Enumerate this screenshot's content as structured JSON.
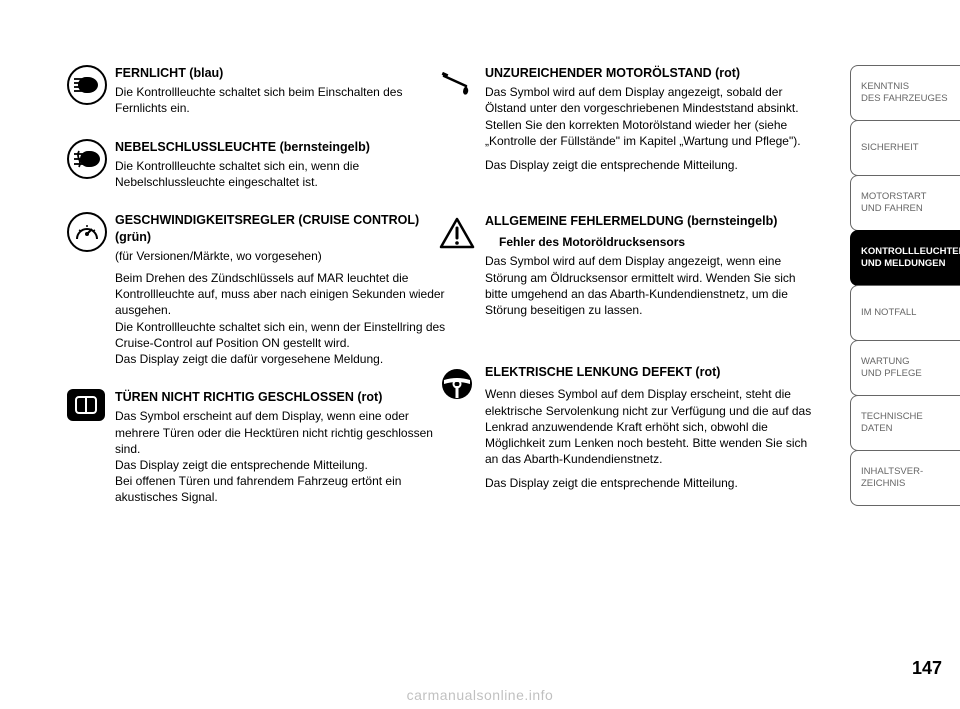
{
  "page_number": "147",
  "watermark": "carmanualsonline.info",
  "sidebar": {
    "tabs": [
      {
        "line1": "KENNTNIS",
        "line2": "DES FAHRZEUGES"
      },
      {
        "line1": "SICHERHEIT",
        "line2": ""
      },
      {
        "line1": "MOTORSTART",
        "line2": "UND FAHREN"
      },
      {
        "line1": "KONTROLLLEUCHTEN",
        "line2": "UND MELDUNGEN"
      },
      {
        "line1": "IM NOTFALL",
        "line2": ""
      },
      {
        "line1": "WARTUNG",
        "line2": "UND PFLEGE"
      },
      {
        "line1": "TECHNISCHE",
        "line2": "DATEN"
      },
      {
        "line1": "INHALTSVER-",
        "line2": "ZEICHNIS"
      }
    ],
    "active_index": 3
  },
  "left_col": {
    "s1": {
      "heading": "FERNLICHT (blau)",
      "body": "Die Kontrollleuchte schaltet sich beim Einschalten des Fernlichts ein."
    },
    "s2": {
      "heading": "NEBELSCHLUSSLEUCHTE (bernsteingelb)",
      "body": "Die Kontrollleuchte schaltet sich ein, wenn die Nebelschlussleuchte eingeschaltet ist."
    },
    "s3": {
      "heading": "GESCHWINDIGKEITSREGLER (CRUISE CONTROL)(grün)",
      "sub": "(für Versionen/Märkte, wo vorgesehen)",
      "body": "Beim Drehen des Zündschlüssels auf MAR leuchtet die Kontrollleuchte auf, muss aber nach einigen Sekunden wieder ausgehen.\nDie Kontrollleuchte schaltet sich ein, wenn der Einstellring des Cruise-Control auf Position ON gestellt wird.\nDas Display zeigt die dafür vorgesehene Meldung."
    },
    "s4": {
      "heading": "TÜREN NICHT RICHTIG GESCHLOSSEN (rot)",
      "body": "Das Symbol erscheint auf dem Display, wenn eine oder mehrere Türen oder die Hecktüren nicht richtig geschlossen sind.\nDas Display zeigt die entsprechende Mitteilung.\nBei offenen Türen und fahrendem Fahrzeug ertönt ein akustisches Signal."
    }
  },
  "right_col": {
    "s1": {
      "heading": "UNZUREICHENDER MOTORÖLSTAND (rot)",
      "body": "Das Symbol wird auf dem Display angezeigt, sobald der Ölstand unter den vorgeschriebenen Mindeststand absinkt. Stellen Sie den korrekten Motorölstand wieder her (siehe „Kontrolle der Füllstände\" im Kapitel „Wartung und Pflege\").",
      "body2": "Das Display zeigt die entsprechende Mitteilung."
    },
    "s2": {
      "heading": "ALLGEMEINE FEHLERMELDUNG (bernsteingelb)",
      "subheading": "Fehler des Motoröldrucksensors",
      "body": "Das Symbol wird auf dem Display angezeigt, wenn eine Störung am Öldrucksensor ermittelt wird. Wenden Sie sich bitte umgehend an das Abarth-Kundendienstnetz, um die Störung beseitigen zu lassen."
    },
    "s3": {
      "heading": "ELEKTRISCHE LENKUNG DEFEKT (rot)",
      "body": "Wenn dieses Symbol auf dem Display erscheint, steht die elektrische Servolenkung nicht zur Verfügung und die auf das Lenkrad anzuwendende Kraft erhöht sich, obwohl die Möglichkeit zum Lenken noch besteht. Bitte wenden Sie sich an das Abarth-Kundendienstnetz.",
      "body2": "Das Display zeigt die entsprechende Mitteilung."
    }
  }
}
